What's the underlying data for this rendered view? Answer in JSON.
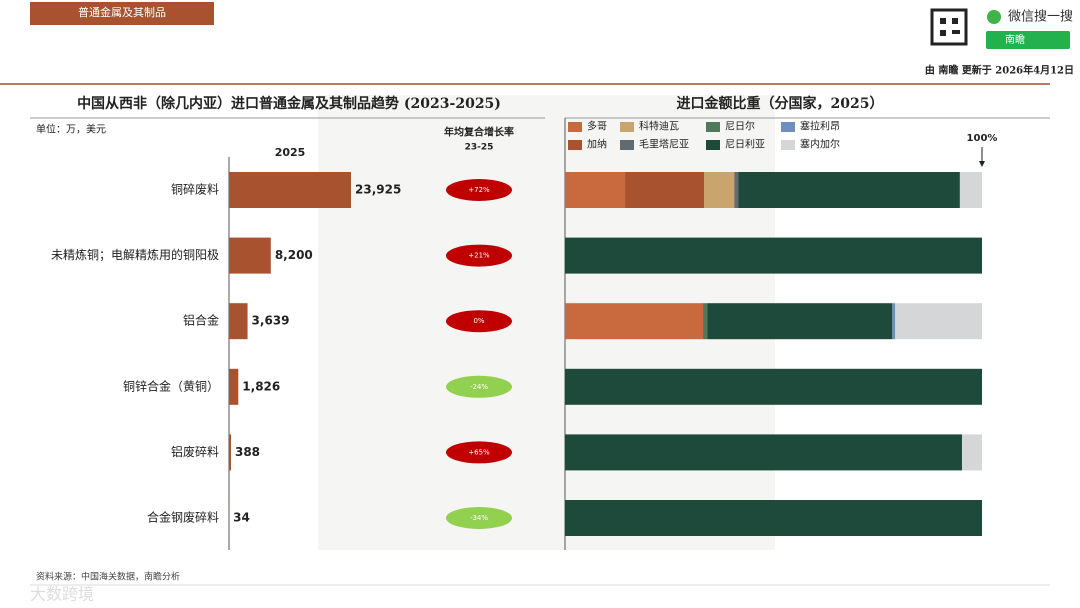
{
  "header": {
    "tag": "普通金属及其制品",
    "search": "微信搜一搜",
    "button": "南瞻",
    "update": "由 南瞻 更新于 2026年4月12日"
  },
  "chart_data": [
    {
      "type": "hbar",
      "title": "中国从西非（除几内亚）进口普通金属及其制品趋势 (2023-2025)",
      "unit": "单位：万，美元",
      "column": "2025",
      "categories": [
        "铜碎废料",
        "未精炼铜；电解精炼用的铜阳极",
        "铝合金",
        "铜锌合金（黄铜）",
        "铝废碎料",
        "合金钢废碎料"
      ],
      "values": [
        23925,
        8200,
        3639,
        1826,
        388,
        34
      ],
      "value_labels": [
        "23,925",
        "8,200",
        "3,639",
        "1,826",
        "388",
        "34"
      ],
      "color": "#a9522f",
      "growth": {
        "title": "年均复合增长率",
        "subtitle": "23-25",
        "values": [
          72,
          21,
          0,
          -24,
          65,
          -34
        ],
        "value_labels": [
          "+72%",
          "+21%",
          "0%",
          "-24%",
          "+65%",
          "-34%"
        ],
        "positive_color": "#c00000",
        "negative_color": "#92d050"
      }
    },
    {
      "type": "stacked_hbar",
      "title": "进口金额比重（分国家，2025）",
      "xlim": [
        0,
        100
      ],
      "xticks": [
        {
          "value": 100,
          "label": "100%"
        }
      ],
      "series": [
        {
          "name": "多哥",
          "color": "#c8693e",
          "values": [
            14.4,
            0,
            33.1,
            0,
            0,
            0
          ]
        },
        {
          "name": "加纳",
          "color": "#a9522f",
          "values": [
            19.0,
            0,
            0,
            0,
            0,
            0
          ]
        },
        {
          "name": "科特迪瓦",
          "color": "#c9a46c",
          "values": [
            7.2,
            0,
            0,
            0,
            0,
            0
          ]
        },
        {
          "name": "毛里塔尼亚",
          "color": "#5f6b70",
          "values": [
            1.0,
            0,
            0,
            0,
            0,
            0
          ]
        },
        {
          "name": "尼日尔",
          "color": "#4f7a5a",
          "values": [
            0,
            0,
            1.0,
            0,
            0,
            0
          ]
        },
        {
          "name": "尼日利亚",
          "color": "#1e4a3c",
          "values": [
            53.1,
            100,
            44.4,
            100,
            95.2,
            100
          ]
        },
        {
          "name": "塞拉利昂",
          "color": "#6f8fbf",
          "values": [
            0,
            0,
            0.7,
            0,
            0,
            0
          ]
        },
        {
          "name": "塞内加尔",
          "color": "#d4d6d8",
          "values": [
            5.3,
            0,
            20.8,
            0,
            4.8,
            0
          ]
        }
      ]
    }
  ],
  "footer": {
    "source": "资料来源：中国海关数据，南瞻分析",
    "logo": "大数跨境"
  }
}
